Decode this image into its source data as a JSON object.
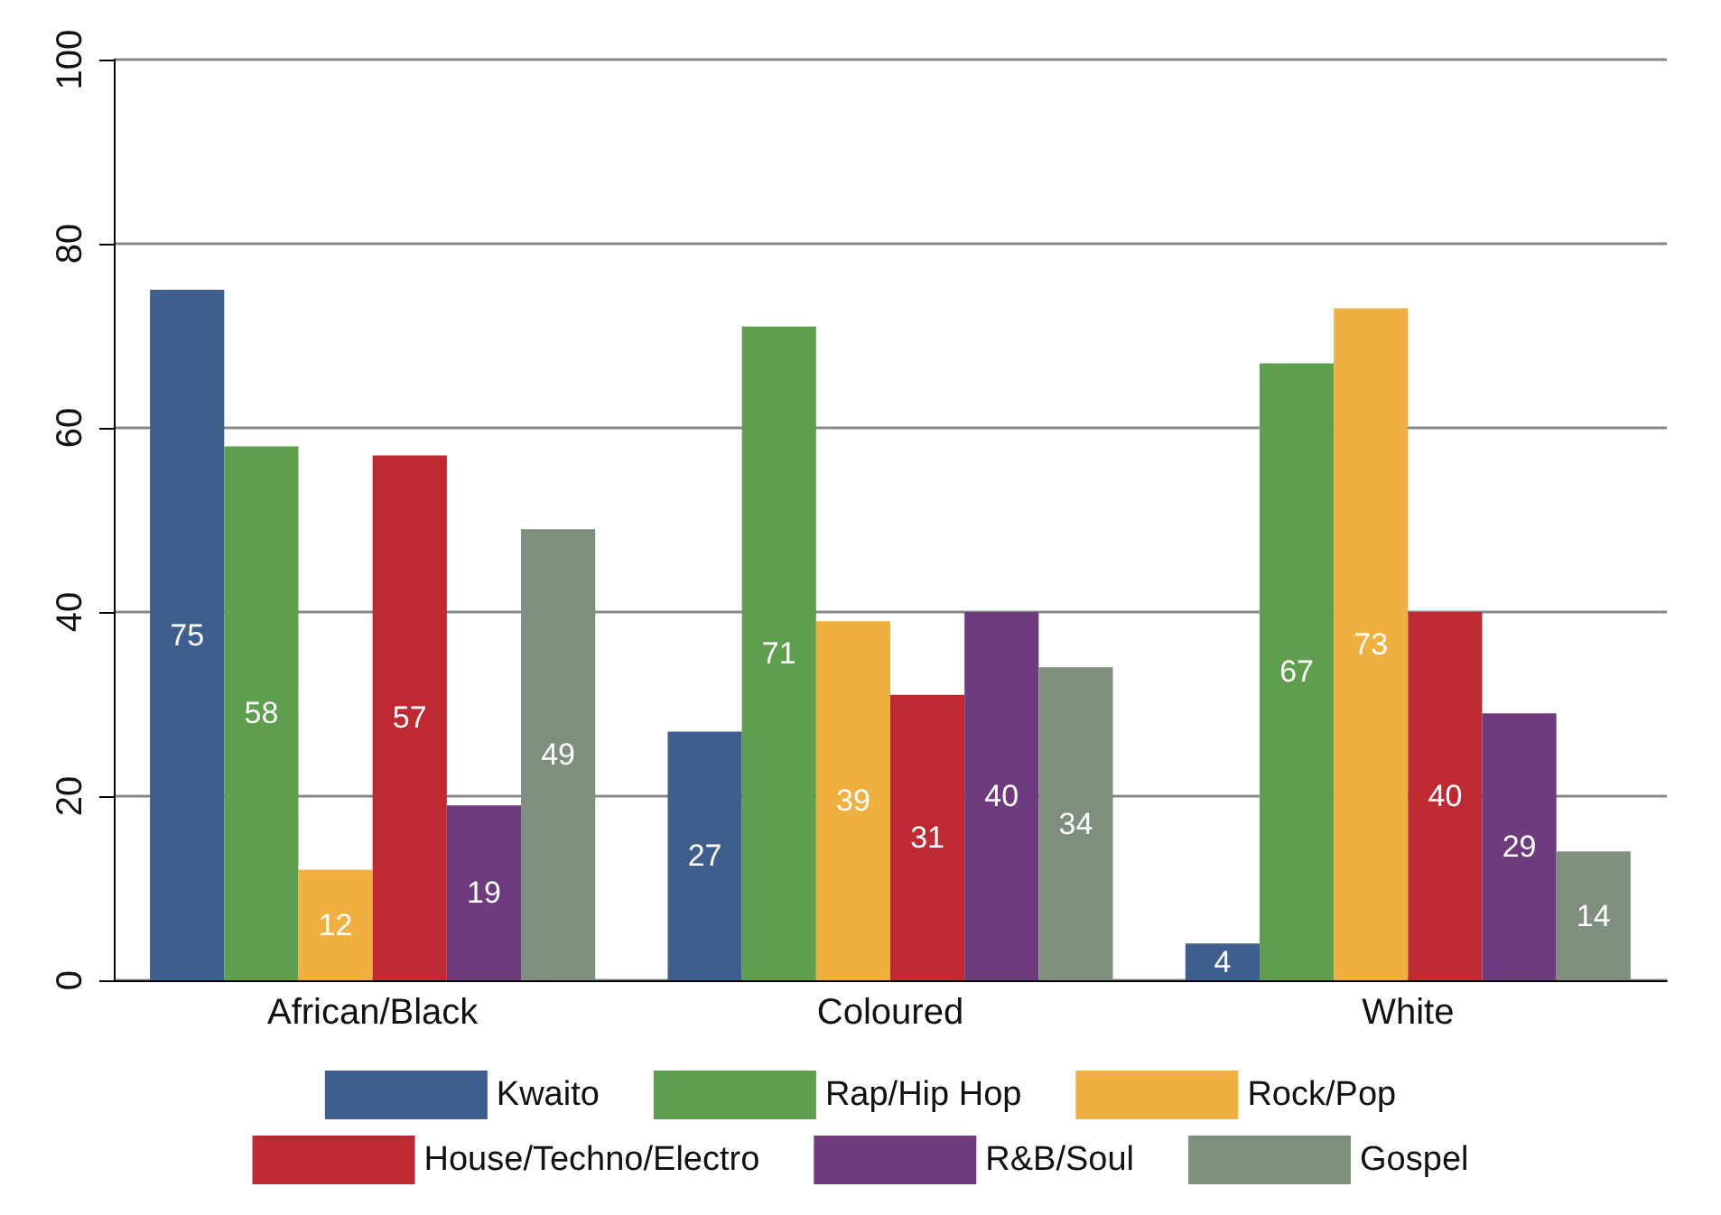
{
  "chart_data": {
    "type": "bar",
    "categories": [
      "African/Black",
      "Coloured",
      "White"
    ],
    "series": [
      {
        "name": "Kwaito",
        "color": "#3e5f8e",
        "values": [
          75,
          27,
          4
        ]
      },
      {
        "name": "Rap/Hip Hop",
        "color": "#5e9e4d",
        "values": [
          58,
          71,
          67
        ]
      },
      {
        "name": "Rock/Pop",
        "color": "#efb03f",
        "values": [
          12,
          39,
          73
        ]
      },
      {
        "name": "House/Techno/Electro",
        "color": "#bf2a32",
        "values": [
          57,
          31,
          40
        ]
      },
      {
        "name": "R&B/Soul",
        "color": "#6e3b7e",
        "values": [
          19,
          40,
          29
        ]
      },
      {
        "name": "Gospel",
        "color": "#7f8f7e",
        "values": [
          49,
          34,
          14
        ]
      }
    ],
    "ylim": [
      0,
      100
    ],
    "yticks": [
      0,
      20,
      40,
      60,
      80,
      100
    ],
    "grid": "y",
    "legend": "bottom",
    "data_labels": true
  }
}
